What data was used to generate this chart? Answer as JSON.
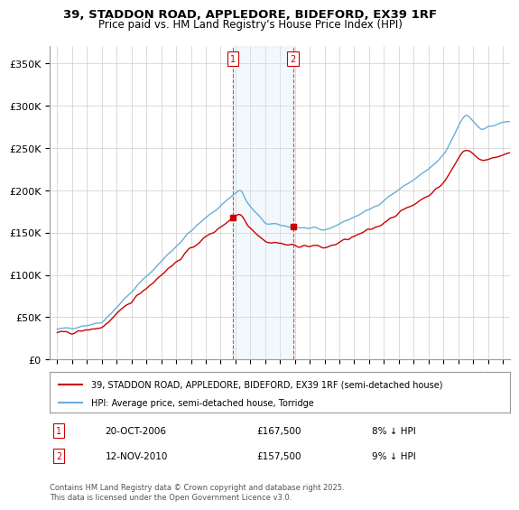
{
  "title_line1": "39, STADDON ROAD, APPLEDORE, BIDEFORD, EX39 1RF",
  "title_line2": "Price paid vs. HM Land Registry's House Price Index (HPI)",
  "ylabel_ticks": [
    "£0",
    "£50K",
    "£100K",
    "£150K",
    "£200K",
    "£250K",
    "£300K",
    "£350K"
  ],
  "ytick_vals": [
    0,
    50000,
    100000,
    150000,
    200000,
    250000,
    300000,
    350000
  ],
  "ylim": [
    0,
    370000
  ],
  "xlim_start": 1995,
  "xlim_end": 2025.5,
  "legend_line1": "39, STADDON ROAD, APPLEDORE, BIDEFORD, EX39 1RF (semi-detached house)",
  "legend_line2": "HPI: Average price, semi-detached house, Torridge",
  "sale1_label": "1",
  "sale1_date": "20-OCT-2006",
  "sale1_price": "£167,500",
  "sale1_note": "8% ↓ HPI",
  "sale1_x": 2006.8,
  "sale1_y": 167500,
  "sale2_label": "2",
  "sale2_date": "12-NOV-2010",
  "sale2_price": "£157,500",
  "sale2_note": "9% ↓ HPI",
  "sale2_x": 2010.87,
  "sale2_y": 157500,
  "hpi_color": "#6baed6",
  "price_color": "#cc0000",
  "shade_color": "#d6e8f7",
  "vline_color": "#cc0000",
  "footnote": "Contains HM Land Registry data © Crown copyright and database right 2025.\nThis data is licensed under the Open Government Licence v3.0.",
  "background_color": "#ffffff",
  "grid_color": "#cccccc"
}
